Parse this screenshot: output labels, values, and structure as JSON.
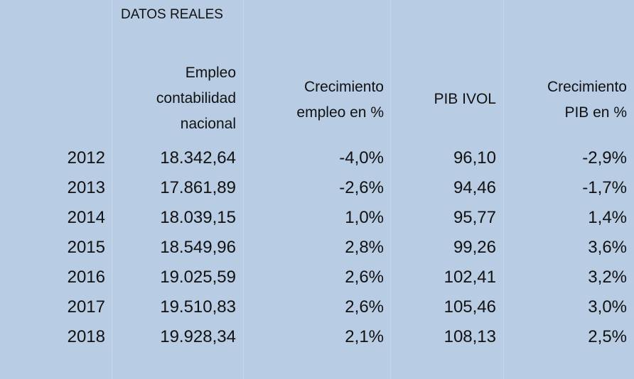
{
  "title": "DATOS REALES",
  "table": {
    "headers": [
      [],
      [
        "Empleo",
        "contabilidad",
        "nacional"
      ],
      [
        "Crecimiento",
        "empleo en %"
      ],
      [
        "PIB IVOL"
      ],
      [
        "Crecimiento",
        "PIB en %"
      ]
    ],
    "rows": [
      [
        "2012",
        "18.342,64",
        "-4,0%",
        "96,10",
        "-2,9%"
      ],
      [
        "2013",
        "17.861,89",
        "-2,6%",
        "94,46",
        "-1,7%"
      ],
      [
        "2014",
        "18.039,15",
        "1,0%",
        "95,77",
        "1,4%"
      ],
      [
        "2015",
        "18.549,96",
        "2,8%",
        "99,26",
        "3,6%"
      ],
      [
        "2016",
        "19.025,59",
        "2,6%",
        "102,41",
        "3,2%"
      ],
      [
        "2017",
        "19.510,83",
        "2,6%",
        "105,46",
        "3,0%"
      ],
      [
        "2018",
        "19.928,34",
        "2,1%",
        "108,13",
        "2,5%"
      ]
    ]
  }
}
